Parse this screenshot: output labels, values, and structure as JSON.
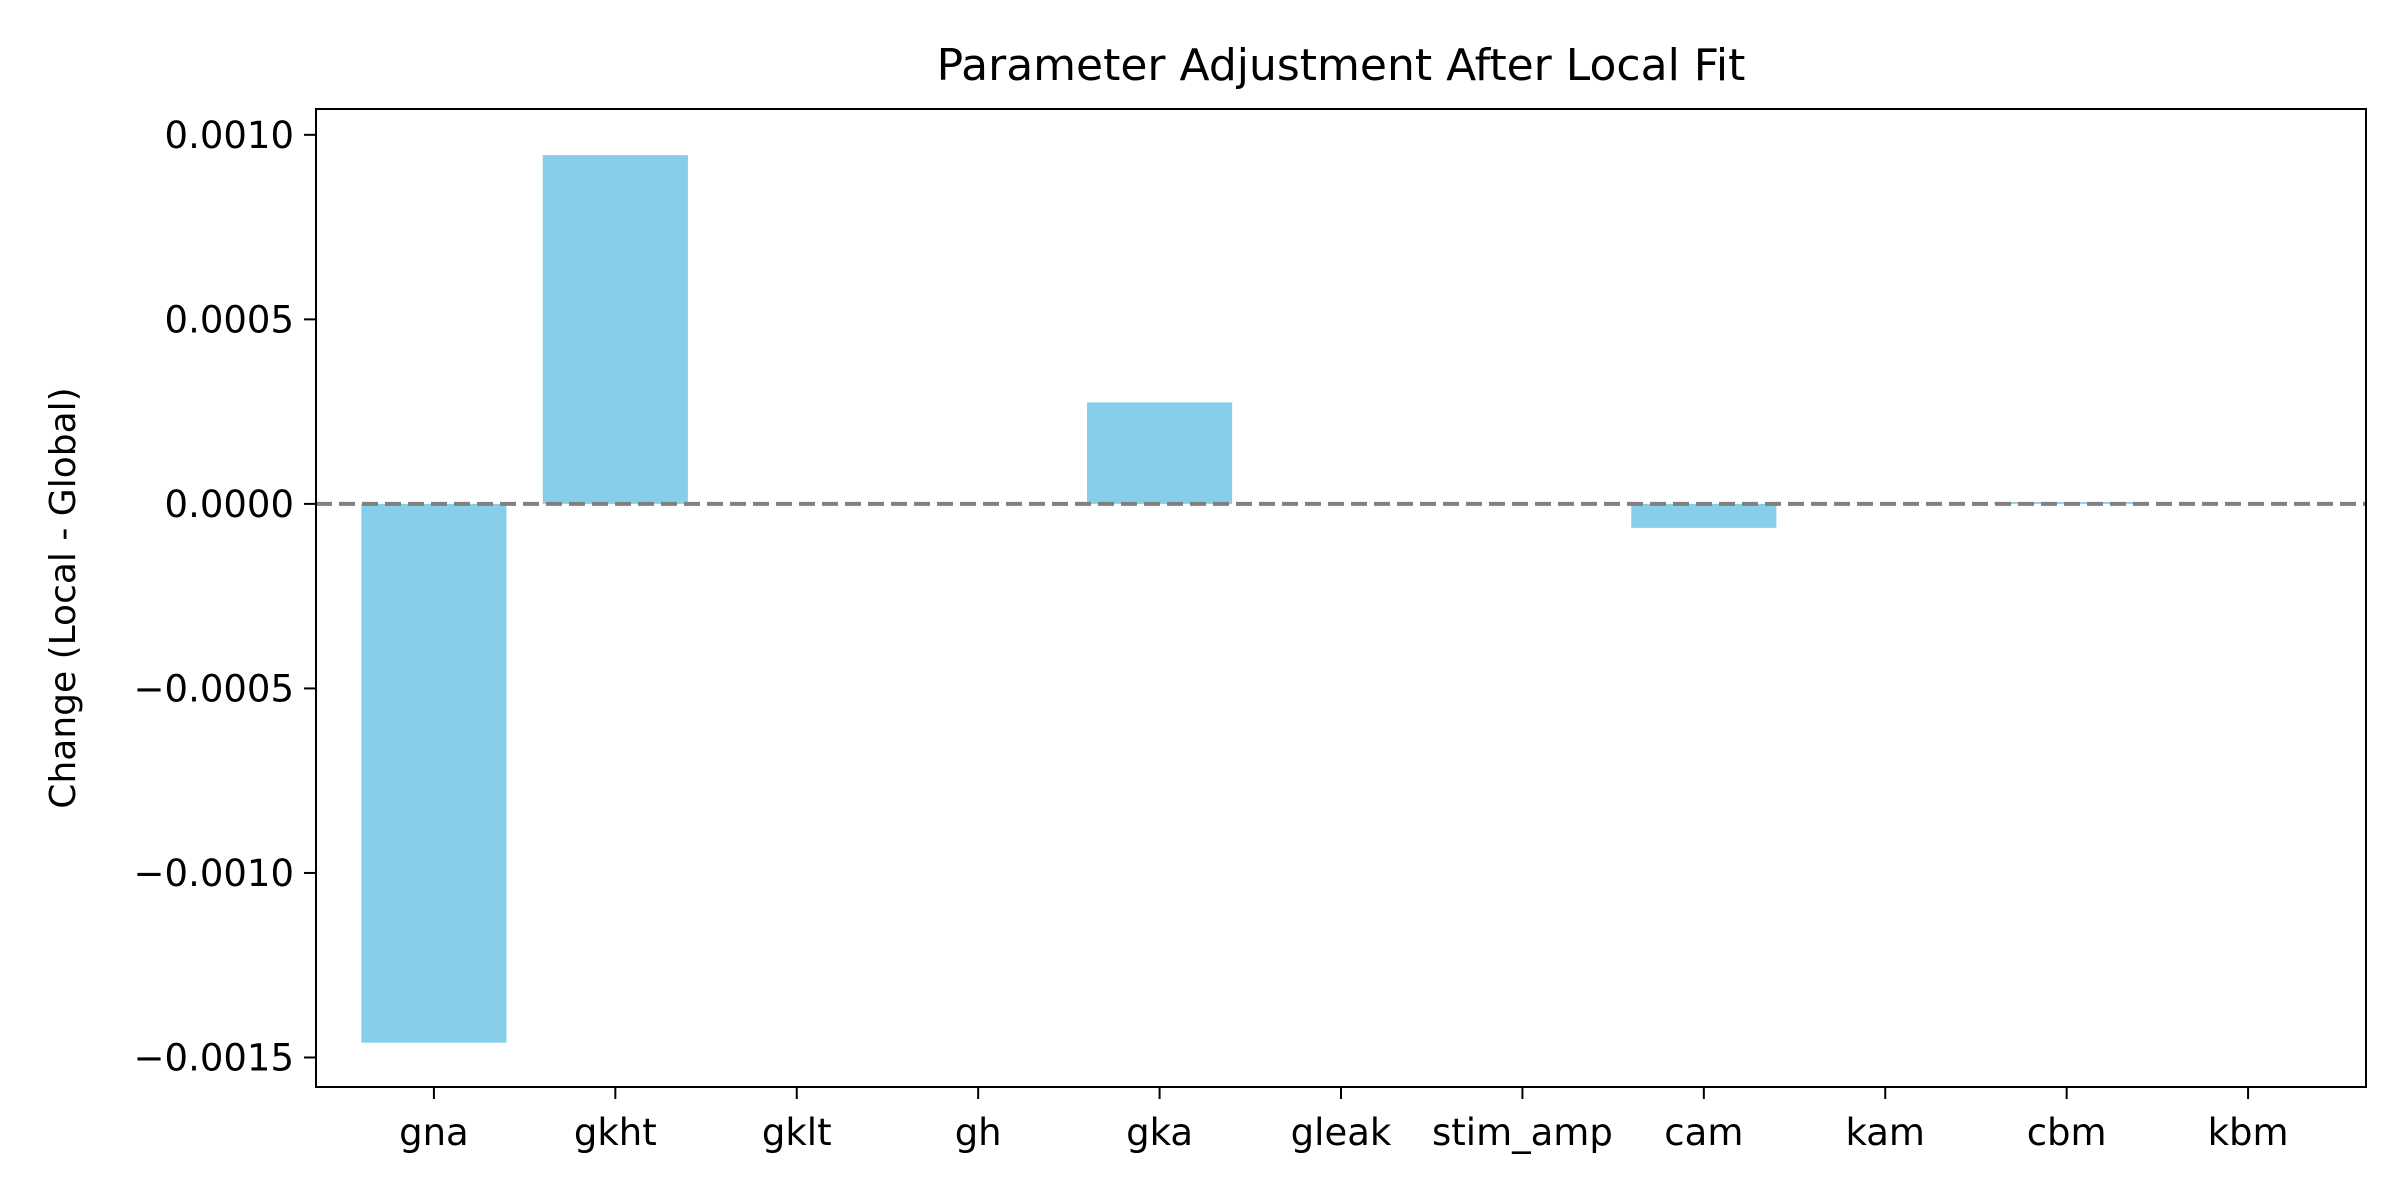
{
  "chart_data": {
    "type": "bar",
    "title": "Parameter Adjustment After Local Fit",
    "xlabel": "",
    "ylabel": "Change (Local - Global)",
    "categories": [
      "gna",
      "gkht",
      "gklt",
      "gh",
      "gka",
      "gleak",
      "stim_amp",
      "cam",
      "kam",
      "cbm",
      "kbm"
    ],
    "values": [
      -0.00146,
      0.000945,
      0.0,
      0.0,
      0.000275,
      0.0,
      0.0,
      -6.5e-05,
      0.0,
      5e-06,
      0.0
    ],
    "ylim": [
      -0.00158,
      0.00107
    ],
    "yticks": [
      0.001,
      0.0005,
      0.0,
      -0.0005,
      -0.001,
      -0.0015
    ],
    "ytick_labels": [
      "0.0010",
      "0.0005",
      "0.0000",
      "−0.0005",
      "−0.0010",
      "−0.0015"
    ],
    "reference_line": {
      "y": 0.0,
      "style": "dashed",
      "color": "#808080"
    },
    "bar_color": "#87ceeb",
    "grid": false,
    "legend": "none"
  }
}
